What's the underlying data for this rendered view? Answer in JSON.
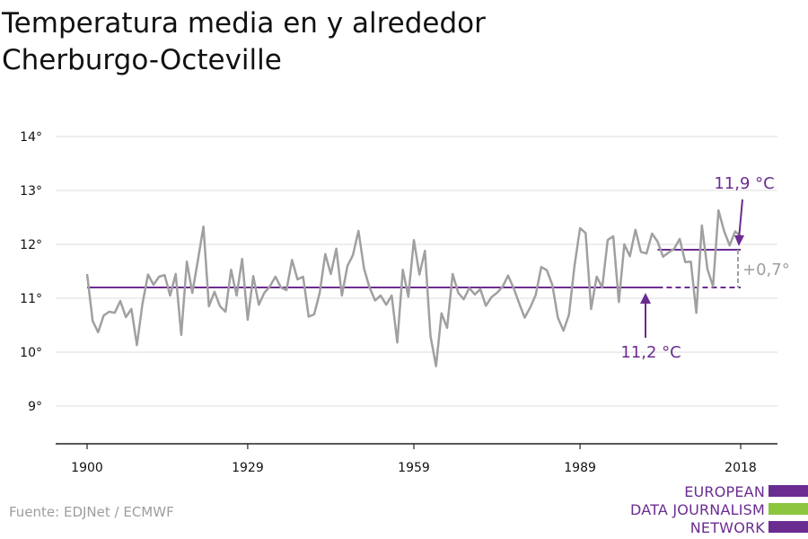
{
  "title_lines": [
    "Temperatura media en y alrededor",
    "Cherburgo-Octeville"
  ],
  "source": "Fuente: EDJNet / ECMWF",
  "logo": {
    "lines": [
      "EUROPEAN",
      "DATA JOURNALISM",
      "NETWORK"
    ],
    "colors": [
      "#6b2c91",
      "#8cc63f",
      "#6b2c91"
    ]
  },
  "colors": {
    "series": "#a0a0a0",
    "accent": "#6b2c91",
    "grid": "#dcdcdc",
    "axis": "#222222",
    "text": "#111111",
    "diff": "#9e9e9e"
  },
  "chart_data": {
    "type": "line",
    "title": "",
    "xlabel": "",
    "ylabel": "",
    "xlim": [
      1900,
      2018
    ],
    "ylim": [
      8.3,
      14
    ],
    "grid": true,
    "x_ticks": [
      1900,
      1929,
      1959,
      1989,
      2018
    ],
    "y_ticks": [
      9,
      10,
      11,
      12,
      13,
      14
    ],
    "y_tick_labels": [
      "9°",
      "10°",
      "11°",
      "12°",
      "13°",
      "14°"
    ],
    "x": [
      1900,
      1901,
      1902,
      1903,
      1904,
      1905,
      1906,
      1907,
      1908,
      1909,
      1910,
      1911,
      1912,
      1913,
      1914,
      1915,
      1916,
      1917,
      1918,
      1919,
      1920,
      1921,
      1922,
      1923,
      1924,
      1925,
      1926,
      1927,
      1928,
      1929,
      1930,
      1931,
      1932,
      1933,
      1934,
      1935,
      1936,
      1937,
      1938,
      1939,
      1940,
      1941,
      1942,
      1943,
      1944,
      1945,
      1946,
      1947,
      1948,
      1949,
      1950,
      1951,
      1952,
      1953,
      1954,
      1955,
      1956,
      1957,
      1958,
      1959,
      1960,
      1961,
      1962,
      1963,
      1964,
      1965,
      1966,
      1967,
      1968,
      1969,
      1970,
      1971,
      1972,
      1973,
      1974,
      1975,
      1976,
      1977,
      1978,
      1979,
      1980,
      1981,
      1982,
      1983,
      1984,
      1985,
      1986,
      1987,
      1988,
      1989,
      1990,
      1991,
      1992,
      1993,
      1994,
      1995,
      1996,
      1997,
      1998,
      1999,
      2000,
      2001,
      2002,
      2003,
      2004,
      2005,
      2006,
      2007,
      2008,
      2009,
      2010,
      2011,
      2012,
      2013,
      2014,
      2015,
      2016,
      2017,
      2018
    ],
    "series": [
      {
        "values": [
          11.45,
          10.58,
          10.37,
          10.68,
          10.75,
          10.73,
          10.95,
          10.65,
          10.8,
          10.13,
          10.9,
          11.44,
          11.25,
          11.4,
          11.43,
          11.05,
          11.45,
          10.32,
          11.68,
          11.1,
          11.7,
          12.33,
          10.85,
          11.12,
          10.85,
          10.75,
          11.53,
          11.05,
          11.73,
          10.6,
          11.41,
          10.88,
          11.1,
          11.22,
          11.4,
          11.2,
          11.15,
          11.71,
          11.35,
          11.4,
          10.66,
          10.7,
          11.1,
          11.82,
          11.45,
          11.92,
          11.05,
          11.6,
          11.8,
          12.25,
          11.55,
          11.2,
          10.96,
          11.05,
          10.88,
          11.05,
          10.18,
          11.53,
          11.03,
          12.08,
          11.44,
          11.88,
          10.3,
          9.74,
          10.72,
          10.45,
          11.45,
          11.1,
          10.98,
          11.19,
          11.07,
          11.17,
          10.86,
          11.02,
          11.1,
          11.21,
          11.42,
          11.19,
          10.91,
          10.64,
          10.83,
          11.06,
          11.58,
          11.52,
          11.25,
          10.64,
          10.4,
          10.69,
          11.6,
          12.3,
          12.21,
          10.8,
          11.4,
          11.2,
          12.08,
          12.15,
          10.93,
          12,
          11.78,
          12.27,
          11.86,
          11.83,
          12.2,
          12.05,
          11.77,
          11.85,
          11.92,
          12.1,
          11.67,
          11.68,
          10.73,
          12.35,
          11.54,
          11.22,
          12.63,
          12.25,
          11.98,
          12.24,
          12.15
        ]
      }
    ],
    "annotations": {
      "baseline": {
        "value": 11.2,
        "x_start": 1900,
        "x_solid_end": 2003,
        "x_end": 2018,
        "label": "11,2 °C"
      },
      "recent": {
        "value": 11.9,
        "x_start": 2003,
        "x_end": 2018,
        "label": "11,9 °C"
      },
      "difference": {
        "label": "+0,7°"
      }
    }
  }
}
